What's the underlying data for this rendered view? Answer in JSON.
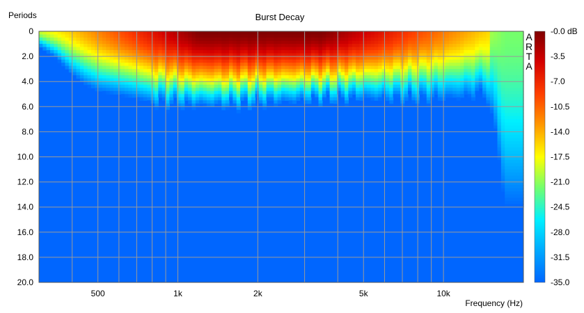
{
  "chart_data": {
    "type": "heatmap",
    "title": "Burst Decay",
    "xlabel": "Frequency (Hz)",
    "ylabel": "Periods",
    "x_scale": "log",
    "xlim": [
      300,
      20000
    ],
    "ylim": [
      0,
      20
    ],
    "y_ticks": [
      "0",
      "2.0",
      "4.0",
      "6.0",
      "8.0",
      "10.0",
      "12.0",
      "14.0",
      "16.0",
      "18.0",
      "20.0"
    ],
    "x_ticks": [
      {
        "label": "500",
        "value": 500
      },
      {
        "label": "1k",
        "value": 1000
      },
      {
        "label": "2k",
        "value": 2000
      },
      {
        "label": "5k",
        "value": 5000
      },
      {
        "label": "10k",
        "value": 10000
      }
    ],
    "colorbar": {
      "range_db": [
        -35,
        0
      ],
      "labels": [
        "-0.0 dB",
        "-3.5",
        "-7.0",
        "-10.5",
        "-14.0",
        "-17.5",
        "-21.0",
        "-24.5",
        "-28.0",
        "-31.5",
        "-35.0"
      ]
    },
    "watermark": [
      "A",
      "R",
      "T",
      "A"
    ],
    "grid": true,
    "decay_profile": {
      "description_fields": [
        "frequency_hz",
        "periods_to_-35dB"
      ],
      "points": [
        [
          300,
          1.2
        ],
        [
          350,
          2.2
        ],
        [
          400,
          3.5
        ],
        [
          450,
          4.3
        ],
        [
          500,
          4.8
        ],
        [
          600,
          5.1
        ],
        [
          700,
          5.4
        ],
        [
          800,
          5.7
        ],
        [
          1000,
          5.9
        ],
        [
          1500,
          6.0
        ],
        [
          2000,
          5.8
        ],
        [
          3000,
          5.6
        ],
        [
          5000,
          5.4
        ],
        [
          7000,
          5.5
        ],
        [
          10000,
          5.4
        ],
        [
          12000,
          5.3
        ],
        [
          14000,
          5.0
        ],
        [
          15500,
          7.0
        ],
        [
          17000,
          14.0
        ],
        [
          20000,
          14.0
        ]
      ]
    }
  }
}
